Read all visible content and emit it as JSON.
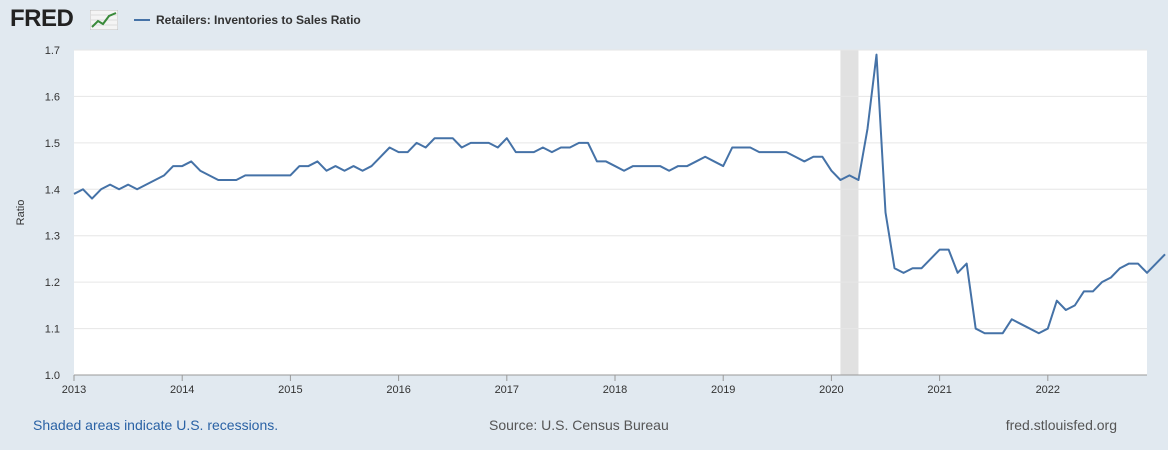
{
  "header": {
    "logo_text": "FRED",
    "logo_icon": "line-chart-icon",
    "series_title": "Retailers: Inventories to Sales Ratio"
  },
  "footer": {
    "recession_note": "Shaded areas indicate U.S. recessions.",
    "source": "Source: U.S. Census Bureau",
    "site": "fred.stlouisfed.org"
  },
  "colors": {
    "line": "#4572a7",
    "recession": "#e1e1e1",
    "grid": "#e6e6e6",
    "background": "#e1e9f0",
    "plot_bg": "#ffffff"
  },
  "chart_data": {
    "type": "line",
    "title": "Retailers: Inventories to Sales Ratio",
    "ylabel": "Ratio",
    "xlabel": "",
    "ylim": [
      1.0,
      1.7
    ],
    "yticks": [
      "1.0",
      "1.1",
      "1.2",
      "1.3",
      "1.4",
      "1.5",
      "1.6",
      "1.7"
    ],
    "xlim": [
      "2013-01",
      "2022-12"
    ],
    "xticks": [
      "2013",
      "2014",
      "2015",
      "2016",
      "2017",
      "2018",
      "2019",
      "2020",
      "2021",
      "2022"
    ],
    "grid": true,
    "recessions": [
      {
        "start": "2020-02",
        "end": "2020-04"
      }
    ],
    "series": [
      {
        "name": "Retailers: Inventories to Sales Ratio",
        "frequency": "monthly",
        "start": "2013-01",
        "values": [
          1.39,
          1.4,
          1.38,
          1.4,
          1.41,
          1.4,
          1.41,
          1.4,
          1.41,
          1.42,
          1.43,
          1.45,
          1.45,
          1.46,
          1.44,
          1.43,
          1.42,
          1.42,
          1.42,
          1.43,
          1.43,
          1.43,
          1.43,
          1.43,
          1.43,
          1.45,
          1.45,
          1.46,
          1.44,
          1.45,
          1.44,
          1.45,
          1.44,
          1.45,
          1.47,
          1.49,
          1.48,
          1.48,
          1.5,
          1.49,
          1.51,
          1.51,
          1.51,
          1.49,
          1.5,
          1.5,
          1.5,
          1.49,
          1.51,
          1.48,
          1.48,
          1.48,
          1.49,
          1.48,
          1.49,
          1.49,
          1.5,
          1.5,
          1.46,
          1.46,
          1.45,
          1.44,
          1.45,
          1.45,
          1.45,
          1.45,
          1.44,
          1.45,
          1.45,
          1.46,
          1.47,
          1.46,
          1.45,
          1.49,
          1.49,
          1.49,
          1.48,
          1.48,
          1.48,
          1.48,
          1.47,
          1.46,
          1.47,
          1.47,
          1.44,
          1.42,
          1.43,
          1.42,
          1.53,
          1.69,
          1.35,
          1.23,
          1.22,
          1.23,
          1.23,
          1.25,
          1.27,
          1.27,
          1.22,
          1.24,
          1.1,
          1.09,
          1.09,
          1.09,
          1.12,
          1.11,
          1.1,
          1.09,
          1.1,
          1.16,
          1.14,
          1.15,
          1.18,
          1.18,
          1.2,
          1.21,
          1.23,
          1.24,
          1.24,
          1.22,
          1.24,
          1.26
        ]
      }
    ]
  }
}
